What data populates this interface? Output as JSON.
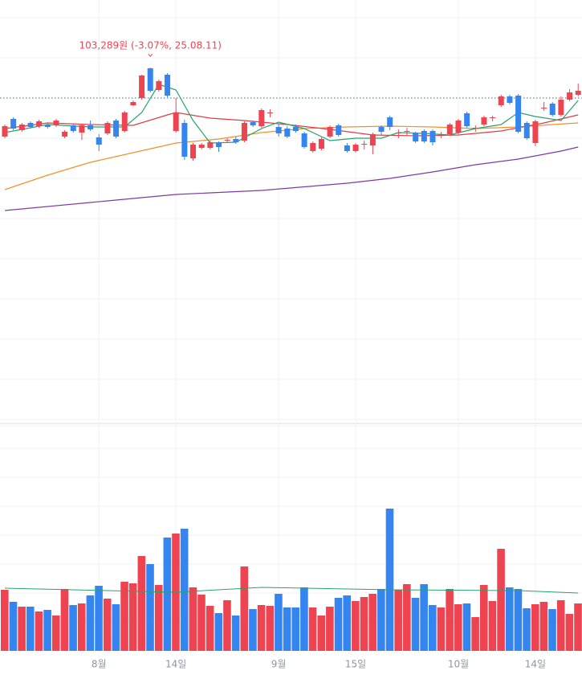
{
  "chart_data": {
    "type": "candlestick",
    "annotation": {
      "text": "103,289원 (-3.07%, 25.08.11)",
      "index": 17
    },
    "categories": [
      null,
      null,
      null,
      null,
      null,
      null,
      null,
      null,
      null,
      null,
      null,
      "8월",
      null,
      null,
      null,
      null,
      null,
      null,
      null,
      null,
      "14일",
      null,
      null,
      null,
      null,
      null,
      null,
      null,
      null,
      null,
      null,
      null,
      "9월",
      null,
      null,
      null,
      null,
      null,
      null,
      null,
      null,
      "15일",
      null,
      null,
      null,
      null,
      null,
      null,
      null,
      null,
      null,
      null,
      null,
      "10월",
      null,
      null,
      null,
      null,
      null,
      null,
      null,
      null,
      "14일",
      null,
      null,
      null,
      null,
      null
    ],
    "open": [
      99000,
      100100,
      99400,
      99850,
      99650,
      99750,
      99700,
      99000,
      99700,
      99250,
      99700,
      98950,
      99200,
      100000,
      99350,
      100950,
      101400,
      103250,
      101900,
      102850,
      99350,
      99850,
      97650,
      98300,
      98300,
      98600,
      98750,
      98850,
      98750,
      99900,
      99650,
      100450,
      99600,
      99500,
      99600,
      99200,
      98100,
      98250,
      99000,
      99700,
      98450,
      98100,
      98500,
      98450,
      99600,
      100200,
      99200,
      99300,
      99200,
      99350,
      99350,
      99100,
      99150,
      99250,
      100450,
      99500,
      99750,
      100150,
      100950,
      101500,
      101550,
      99850,
      98600,
      100750,
      101050,
      100350,
      101300,
      101600
    ],
    "high": [
      99750,
      100200,
      99850,
      99950,
      100050,
      99850,
      100100,
      99400,
      99800,
      99800,
      100000,
      99150,
      99950,
      100100,
      100600,
      101250,
      102850,
      103289,
      102550,
      102950,
      101400,
      100050,
      98600,
      98600,
      98750,
      98700,
      98900,
      99000,
      99950,
      100000,
      100750,
      100700,
      99800,
      99650,
      99750,
      99300,
      98700,
      98950,
      99700,
      99800,
      98600,
      98600,
      98750,
      99250,
      99700,
      100300,
      99450,
      99550,
      99300,
      99450,
      99450,
      99300,
      99850,
      100100,
      100550,
      99700,
      100300,
      100300,
      101600,
      101600,
      101650,
      99950,
      100050,
      101150,
      101150,
      101500,
      101950,
      102300
    ],
    "low": [
      98900,
      99400,
      99300,
      99500,
      99550,
      99500,
      99600,
      98900,
      99250,
      98800,
      99350,
      98100,
      99100,
      98900,
      99250,
      100900,
      101300,
      101750,
      101800,
      101450,
      99250,
      97550,
      97500,
      98200,
      98200,
      98050,
      98600,
      98550,
      98650,
      99600,
      99550,
      100200,
      99000,
      98900,
      99250,
      98250,
      98000,
      98150,
      98900,
      99000,
      98000,
      98000,
      98200,
      97900,
      99100,
      99400,
      98900,
      99050,
      98600,
      98600,
      98450,
      98900,
      99050,
      99150,
      99550,
      99300,
      99650,
      99950,
      100850,
      101000,
      99200,
      98800,
      98400,
      100600,
      100250,
      100250,
      101200,
      101500
    ],
    "close": [
      99650,
      99500,
      99750,
      99600,
      99950,
      99600,
      100000,
      99300,
      99350,
      99700,
      99450,
      98500,
      99850,
      99000,
      100500,
      101150,
      102800,
      101850,
      102450,
      101550,
      100500,
      97750,
      98500,
      98500,
      98650,
      98350,
      98800,
      98650,
      99850,
      99700,
      100650,
      100500,
      99200,
      99000,
      99350,
      98350,
      98600,
      98850,
      99600,
      99100,
      98100,
      98500,
      98550,
      99150,
      99300,
      99600,
      99250,
      99350,
      98700,
      98700,
      98650,
      99150,
      99750,
      100000,
      99650,
      99550,
      100200,
      100200,
      101500,
      101100,
      99300,
      98900,
      99950,
      100800,
      100350,
      101300,
      101750,
      101850
    ],
    "volume": [
      760000,
      610000,
      550000,
      550000,
      490000,
      510000,
      440000,
      770000,
      570000,
      590000,
      690000,
      810000,
      650000,
      580000,
      860000,
      840000,
      1180000,
      1080000,
      820000,
      1410000,
      1460000,
      1520000,
      790000,
      700000,
      560000,
      470000,
      630000,
      440000,
      1050000,
      520000,
      570000,
      560000,
      710000,
      540000,
      540000,
      790000,
      540000,
      440000,
      550000,
      660000,
      690000,
      620000,
      670000,
      710000,
      770000,
      1770000,
      760000,
      830000,
      660000,
      830000,
      570000,
      540000,
      770000,
      580000,
      590000,
      420000,
      820000,
      620000,
      1270000,
      790000,
      770000,
      530000,
      580000,
      610000,
      520000,
      630000,
      460000,
      590000
    ],
    "up_color": "#ee4452",
    "down_color": "#3485f0",
    "ylim": [
      81250,
      107500
    ],
    "ygrid": [
      106400,
      103900,
      98900,
      96400,
      93900,
      91400,
      88900,
      86400,
      83900,
      81400
    ],
    "reference_line": 101400,
    "volume_ylim": [
      0,
      2700000
    ],
    "volume_grid": [
      360000,
      720000,
      1080000,
      1440000,
      1800000,
      2160000,
      2520000
    ],
    "moving_averages": [
      {
        "color": "#25a36f",
        "x": [
          0,
          5,
          10,
          14,
          16,
          18,
          20,
          22,
          24,
          27,
          30,
          32,
          35,
          38,
          41,
          44,
          46,
          49,
          52,
          55,
          58,
          60,
          62,
          65,
          67
        ],
        "values": [
          99250,
          99750,
          99600,
          99600,
          100500,
          102250,
          101900,
          100000,
          98600,
          98650,
          99500,
          99900,
          99500,
          98750,
          98900,
          98900,
          99250,
          99200,
          99100,
          99500,
          99750,
          100500,
          100250,
          100000,
          101250
        ]
      },
      {
        "color": "#e23b43",
        "x": [
          0,
          5,
          10,
          15,
          19,
          20,
          24,
          28,
          33,
          38,
          43,
          48,
          53,
          58,
          63,
          67
        ],
        "values": [
          99500,
          99850,
          99750,
          99700,
          100350,
          100500,
          100150,
          100000,
          99750,
          99450,
          99100,
          99050,
          99100,
          99350,
          99850,
          100350
        ]
      },
      {
        "color": "#f2902a",
        "x": [
          0,
          5,
          10,
          15,
          20,
          25,
          30,
          35,
          40,
          45,
          50,
          55,
          60,
          64,
          67
        ],
        "values": [
          95700,
          96600,
          97400,
          98000,
          98600,
          98850,
          99250,
          99500,
          99600,
          99650,
          99600,
          99500,
          99600,
          99750,
          99850
        ]
      },
      {
        "color": "#7e3aa3",
        "x": [
          0,
          10,
          20,
          30,
          40,
          45,
          50,
          55,
          60,
          65,
          67
        ],
        "values": [
          94400,
          94900,
          95400,
          95650,
          96100,
          96400,
          96800,
          97250,
          97600,
          98100,
          98350
        ]
      }
    ],
    "volume_ma": {
      "color": "#25a36f",
      "x": [
        0,
        20,
        30,
        45,
        60,
        67
      ],
      "values": [
        780000,
        730000,
        790000,
        760000,
        750000,
        720000
      ]
    }
  }
}
